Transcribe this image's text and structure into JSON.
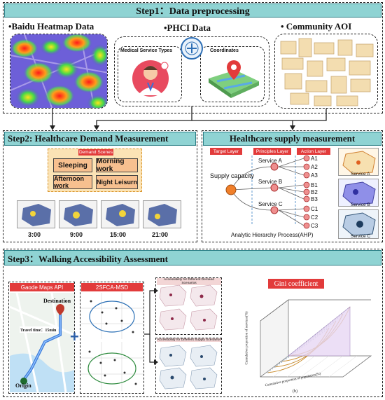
{
  "step1": {
    "title": "Step1：Data preprocessing",
    "baidu_title": "•Baidu Heatmap Data",
    "phci_title": "•PHCI Data",
    "aoi_title": "• Community AOI",
    "medical_label": "Medical Service Types",
    "coords_label": "Coordinates"
  },
  "step2": {
    "title": "Step2: Healthcare Demand Measurement",
    "scenes_header": "Demand Scenes",
    "scenes": [
      "Sleeping",
      "Morning work",
      "Afternoon work",
      "Night Leisurn"
    ],
    "times": [
      "3:00",
      "9:00",
      "15:00",
      "21:00"
    ]
  },
  "supply": {
    "title": "Healthcare supply measurement",
    "target_layer": "Target Layer",
    "principles_layer": "Principles Layer",
    "action_layer": "Action Layer",
    "root": "Supply capacity",
    "services": [
      "Service A",
      "Service B",
      "Service C"
    ],
    "actions": [
      "A1",
      "A2",
      "A3",
      "B1",
      "B2",
      "B3",
      "C1",
      "C2",
      "C3"
    ],
    "ahp": "Analytic Hierarchy Process(AHP)",
    "map_labels": [
      "Service A",
      "Service B",
      "Service C"
    ]
  },
  "step3": {
    "title": "Step3：Walking Accessibility Assessment",
    "gaode_header": "Gaode Maps API",
    "destination": "Destination",
    "travel_time": "Travel time：15min",
    "origin": "Origin",
    "msd_header": "2SFCA-MSD",
    "demand_scen": "Accessibility for Different Demand Scenarios",
    "supply_scen": "Accessibility for Different Supply Scenarios",
    "gini_header": "Gini coefficient",
    "gini_ylabel": "Cumulative proportion of services(%)",
    "gini_xlabel": "Cumulative proportion of population(%)",
    "gini_caption": "(b)"
  },
  "colors": {
    "bar_fill": "#8fd3d3",
    "bar_border": "#2b7f86",
    "accent_red": "#e23b3b",
    "scene_fill": "#f7c08f",
    "scene_panel": "#fbe3b5",
    "service_node": "#ef8f8f",
    "root_node": "#f07f2a"
  }
}
